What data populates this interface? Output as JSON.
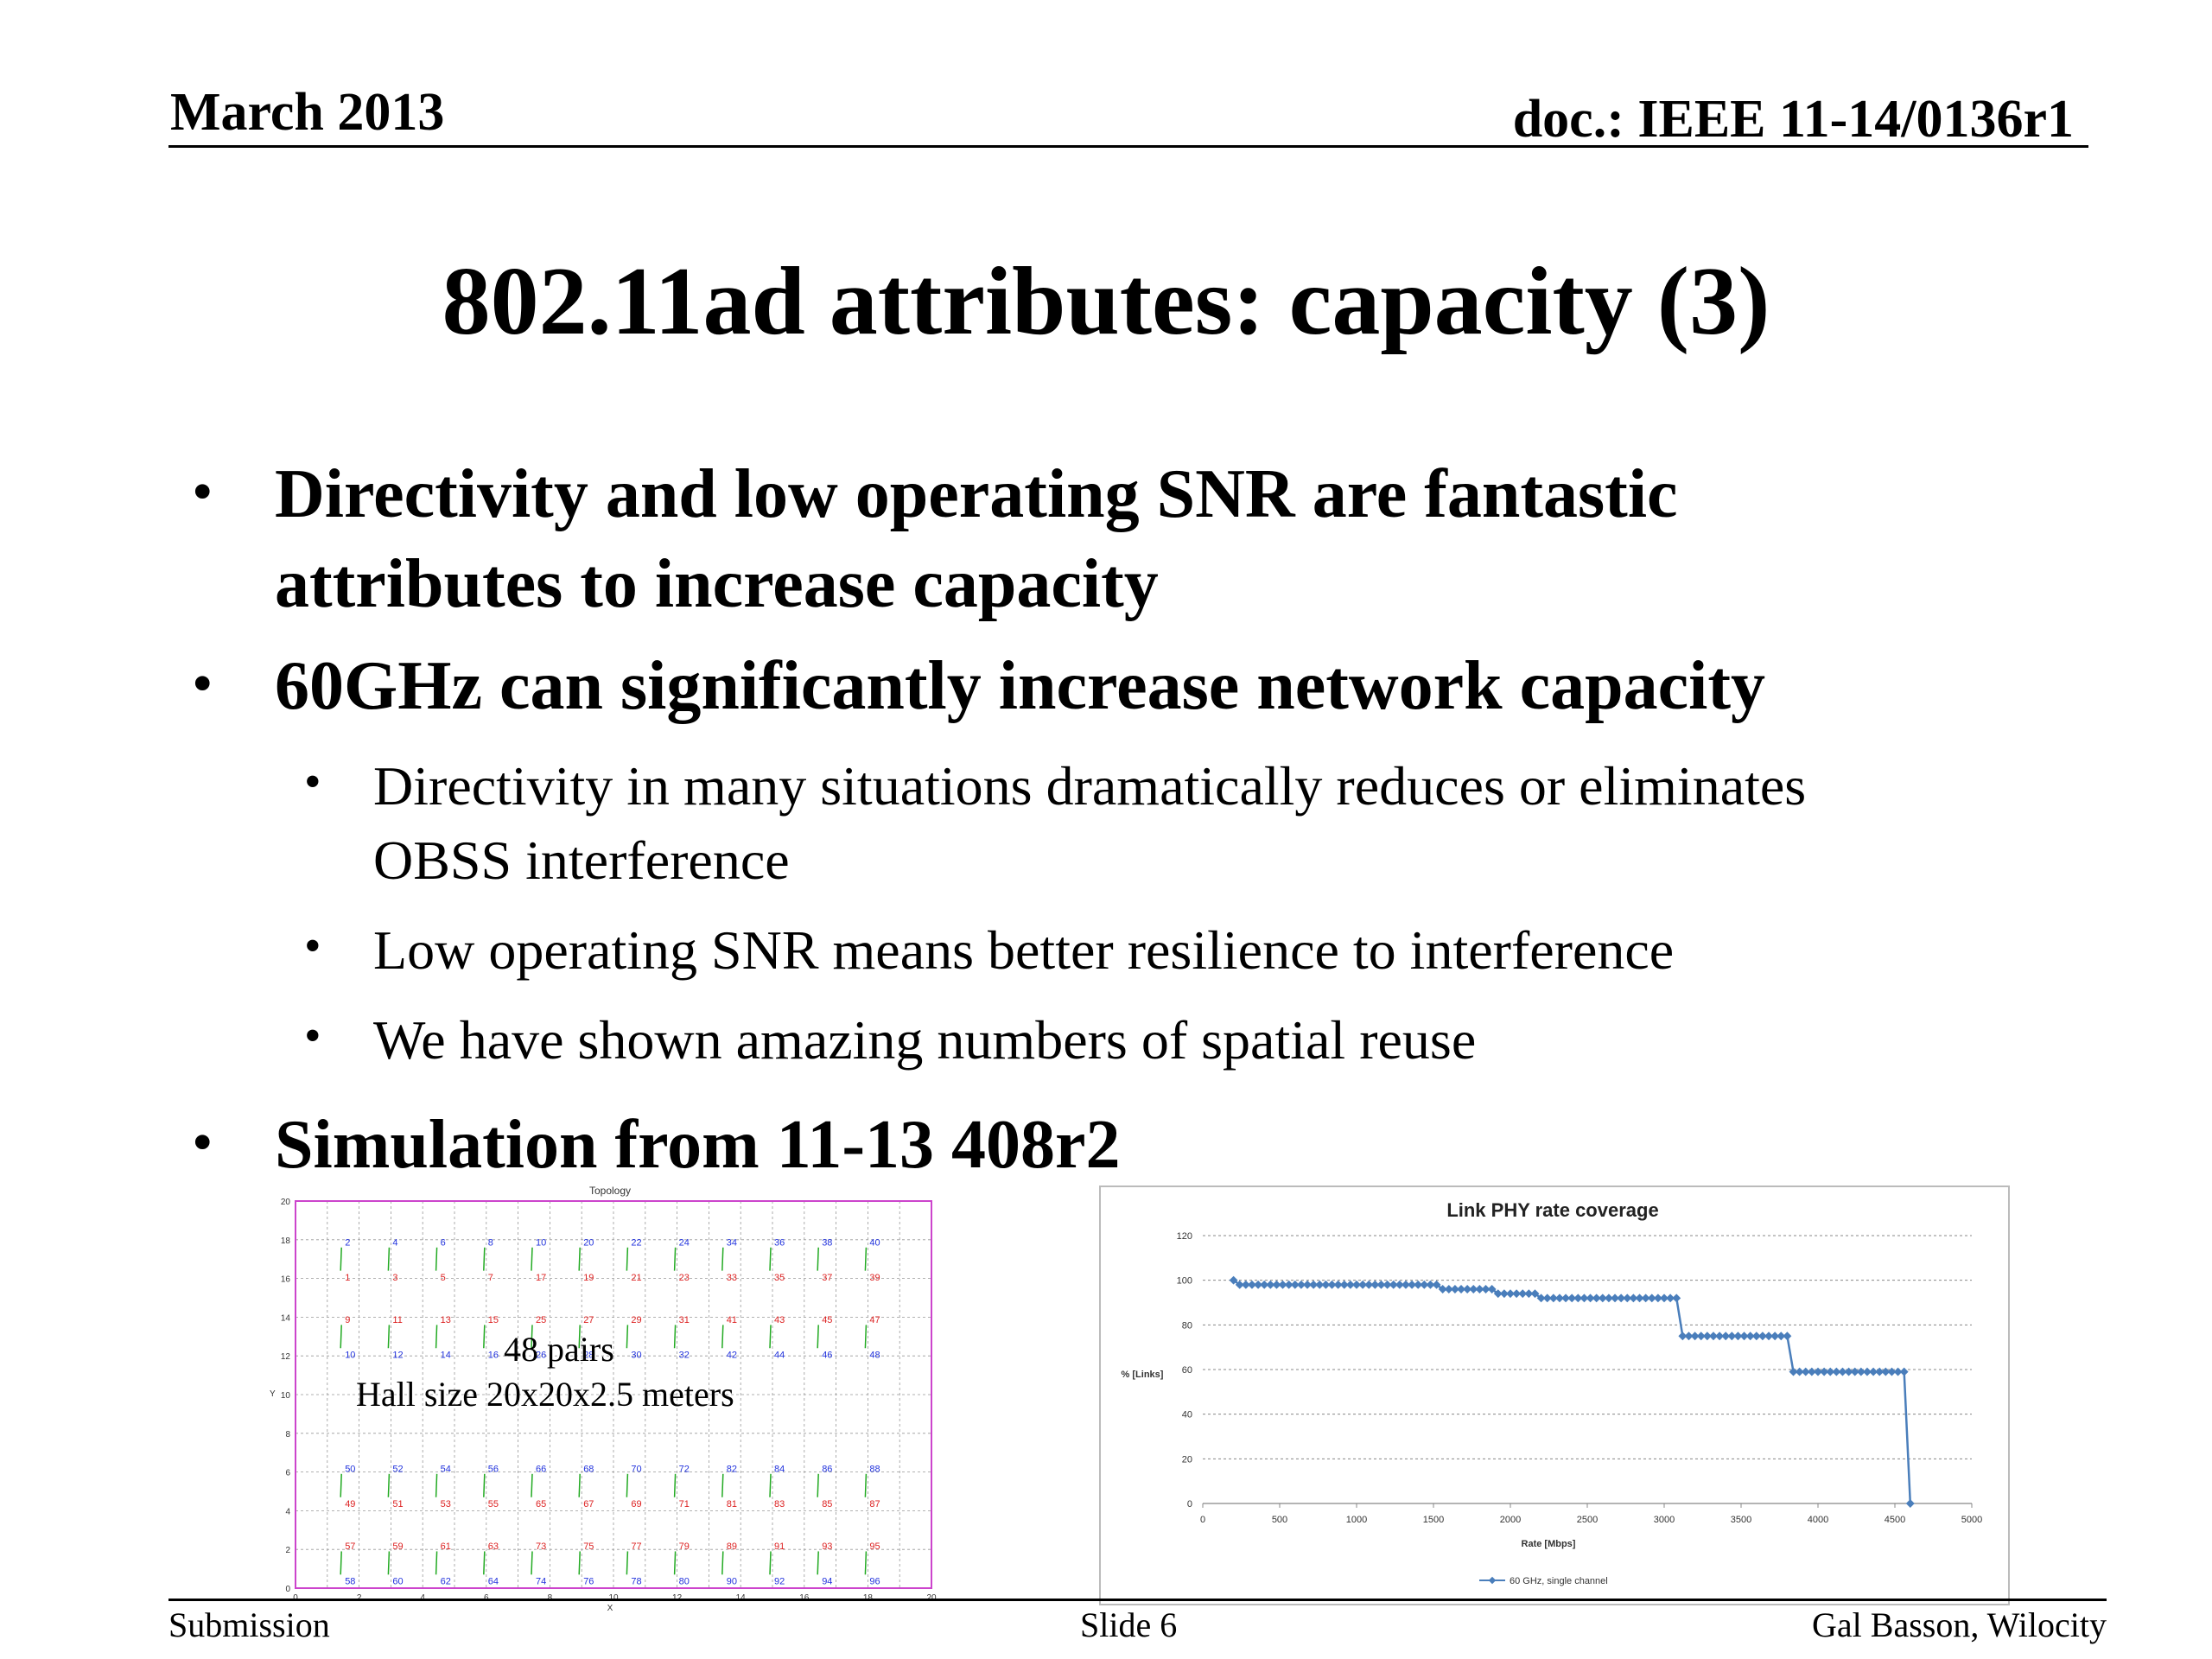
{
  "header": {
    "date": "March 2013",
    "doc_id": "doc.: IEEE 11-14/0136r1"
  },
  "title": "802.11ad attributes: capacity (3)",
  "bullets": {
    "b1_line1": "Directivity and low operating SNR are fantastic",
    "b1_line2": "attributes to increase capacity",
    "b2": "60GHz can significantly increase network capacity",
    "s1_line1": "Directivity in many situations dramatically reduces or eliminates",
    "s1_line2": "OBSS interference",
    "s2": "Low operating SNR means better resilience to interference",
    "s3": "We have shown amazing numbers of spatial reuse",
    "b3": "Simulation from 11-13 408r2"
  },
  "topology": {
    "title": "Topology",
    "pairs_label": "48 pairs",
    "hall_label": "Hall size 20x20x2.5 meters",
    "y_ticks": [
      "0",
      "2",
      "4",
      "6",
      "8",
      "10",
      "12",
      "14",
      "16",
      "18",
      "20"
    ],
    "x_ticks": [
      "0",
      "2",
      "4",
      "6",
      "8",
      "10",
      "12",
      "14",
      "16",
      "18",
      "20"
    ],
    "ylabel": "Y",
    "xlabel": "X",
    "rows": [
      {
        "top": [
          "2",
          "4",
          "6",
          "8",
          "10",
          "20",
          "22",
          "24",
          "34",
          "36",
          "38",
          "40"
        ],
        "bot": [
          "1",
          "3",
          "5",
          "7",
          "17",
          "19",
          "21",
          "23",
          "33",
          "35",
          "37",
          "39"
        ]
      },
      {
        "top": [
          "9",
          "11",
          "13",
          "15",
          "25",
          "27",
          "29",
          "31",
          "41",
          "43",
          "45",
          "47"
        ],
        "bot": [
          "10",
          "12",
          "14",
          "16",
          "26",
          "28",
          "30",
          "32",
          "42",
          "44",
          "46",
          "48"
        ]
      },
      {
        "top": [
          "50",
          "52",
          "54",
          "56",
          "66",
          "68",
          "70",
          "72",
          "82",
          "84",
          "86",
          "88"
        ],
        "bot": [
          "49",
          "51",
          "53",
          "55",
          "65",
          "67",
          "69",
          "71",
          "81",
          "83",
          "85",
          "87"
        ]
      },
      {
        "top": [
          "57",
          "59",
          "61",
          "63",
          "73",
          "75",
          "77",
          "79",
          "89",
          "91",
          "93",
          "95"
        ],
        "bot": [
          "58",
          "60",
          "62",
          "64",
          "74",
          "76",
          "78",
          "80",
          "90",
          "92",
          "94",
          "96"
        ]
      }
    ],
    "colors": {
      "frame": "#cc44cc",
      "blue": "#2233dd",
      "red": "#dd2222",
      "green": "#22aa22"
    }
  },
  "chart_data": {
    "type": "line",
    "title": "Link PHY rate coverage",
    "xlabel": "Rate [Mbps]",
    "ylabel": "% [Links]",
    "xlim": [
      0,
      5000
    ],
    "ylim": [
      0,
      120
    ],
    "x_ticks": [
      "0",
      "500",
      "1000",
      "1500",
      "2000",
      "2500",
      "3000",
      "3500",
      "4000",
      "4500",
      "5000"
    ],
    "y_ticks": [
      "0",
      "20",
      "40",
      "60",
      "80",
      "100",
      "120"
    ],
    "grid": true,
    "legend_position": "bottom",
    "series": [
      {
        "name": "60 GHz, single channel",
        "color": "#4a7ebb",
        "x": [
          200,
          240,
          280,
          320,
          360,
          400,
          440,
          480,
          520,
          560,
          600,
          640,
          680,
          720,
          760,
          800,
          840,
          880,
          920,
          960,
          1000,
          1040,
          1080,
          1120,
          1160,
          1200,
          1240,
          1280,
          1320,
          1360,
          1400,
          1440,
          1480,
          1520,
          1560,
          1600,
          1640,
          1680,
          1720,
          1760,
          1800,
          1840,
          1880,
          1920,
          1960,
          2000,
          2040,
          2080,
          2120,
          2160,
          2200,
          2240,
          2280,
          2320,
          2360,
          2400,
          2440,
          2480,
          2520,
          2560,
          2600,
          2640,
          2680,
          2720,
          2760,
          2800,
          2840,
          2880,
          2920,
          2960,
          3000,
          3040,
          3080,
          3120,
          3160,
          3200,
          3240,
          3280,
          3320,
          3360,
          3400,
          3440,
          3480,
          3520,
          3560,
          3600,
          3640,
          3680,
          3720,
          3760,
          3800,
          3840,
          3880,
          3920,
          3960,
          4000,
          4040,
          4080,
          4120,
          4160,
          4200,
          4240,
          4280,
          4320,
          4360,
          4400,
          4440,
          4480,
          4520,
          4560,
          4600
        ],
        "y": [
          100,
          98,
          98,
          98,
          98,
          98,
          98,
          98,
          98,
          98,
          98,
          98,
          98,
          98,
          98,
          98,
          98,
          98,
          98,
          98,
          98,
          98,
          98,
          98,
          98,
          98,
          98,
          98,
          98,
          98,
          98,
          98,
          98,
          98,
          96,
          96,
          96,
          96,
          96,
          96,
          96,
          96,
          96,
          94,
          94,
          94,
          94,
          94,
          94,
          94,
          92,
          92,
          92,
          92,
          92,
          92,
          92,
          92,
          92,
          92,
          92,
          92,
          92,
          92,
          92,
          92,
          92,
          92,
          92,
          92,
          92,
          92,
          92,
          75,
          75,
          75,
          75,
          75,
          75,
          75,
          75,
          75,
          75,
          75,
          75,
          75,
          75,
          75,
          75,
          75,
          75,
          59,
          59,
          59,
          59,
          59,
          59,
          59,
          59,
          59,
          59,
          59,
          59,
          59,
          59,
          59,
          59,
          59,
          59,
          59,
          0
        ]
      }
    ]
  },
  "footer": {
    "left": "Submission",
    "center": "Slide 6",
    "right": "Gal Basson, Wilocity"
  }
}
